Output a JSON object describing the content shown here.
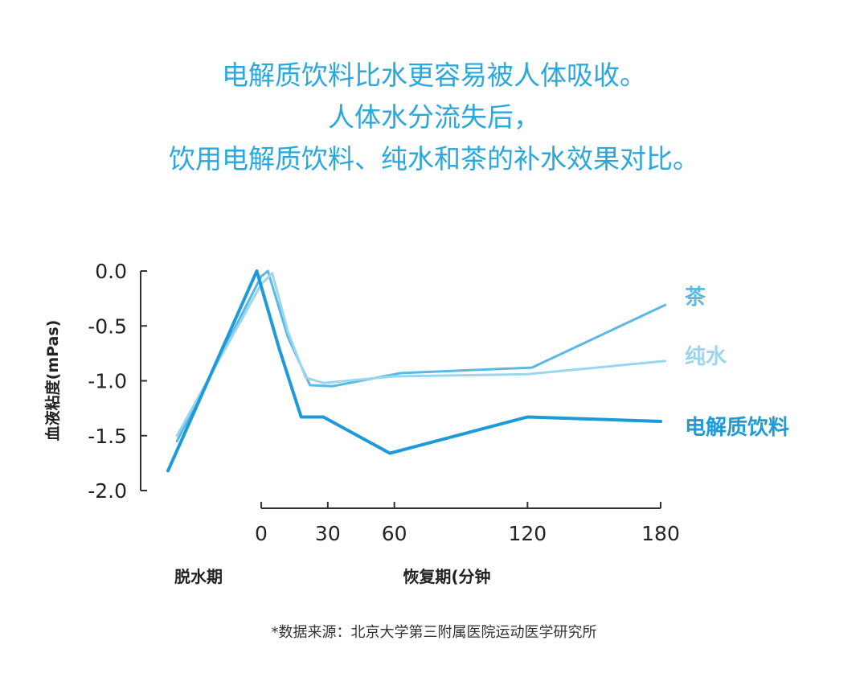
{
  "title_lines": [
    "电解质饮料比水更容易被人体吸收。",
    "人体水分流失后，",
    "饮用电解质饮料、纯水和茶的补水效果对比。"
  ],
  "footnote": "*数据来源：北京大学第三附属医院运动医学研究所",
  "colors": {
    "title": "#2aa7db",
    "tea": "#5bb8e2",
    "water": "#9ad6f0",
    "electrolyte": "#1e9ad9",
    "axis": "#333333"
  },
  "chart_data": {
    "type": "line",
    "ylabel": "血液粘度(mPas)",
    "ylim": [
      -2.0,
      0.0
    ],
    "yticks": [
      "0.0",
      "-0.5",
      "-1.0",
      "-1.5",
      "-2.0"
    ],
    "yticks_values": [
      0.0,
      -0.5,
      -1.0,
      -1.5,
      -2.0
    ],
    "xlabel": "恢复期(分钟",
    "xticks": [
      "0",
      "30",
      "60",
      "120",
      "180"
    ],
    "xticks_values": [
      0,
      30,
      60,
      120,
      180
    ],
    "dehydration_label": "脱水期",
    "series": [
      {
        "name": "茶",
        "color": "#5bb8e2",
        "points": [
          [
            -38,
            -1.55
          ],
          [
            0,
            -0.05
          ],
          [
            3,
            0.0
          ],
          [
            12,
            -0.6
          ],
          [
            22,
            -1.04
          ],
          [
            32,
            -1.05
          ],
          [
            63,
            -0.93
          ],
          [
            122,
            -0.88
          ],
          [
            182,
            -0.31
          ]
        ]
      },
      {
        "name": "纯水",
        "color": "#9ad6f0",
        "points": [
          [
            -38,
            -1.5
          ],
          [
            0,
            -0.12
          ],
          [
            5,
            -0.02
          ],
          [
            12,
            -0.55
          ],
          [
            20,
            -0.97
          ],
          [
            28,
            -1.02
          ],
          [
            60,
            -0.96
          ],
          [
            120,
            -0.94
          ],
          [
            182,
            -0.82
          ]
        ]
      },
      {
        "name": "电解质饮料",
        "color": "#1e9ad9",
        "points": [
          [
            -42,
            -1.82
          ],
          [
            -2,
            0.0
          ],
          [
            8,
            -0.7
          ],
          [
            18,
            -1.33
          ],
          [
            28,
            -1.33
          ],
          [
            58,
            -1.66
          ],
          [
            120,
            -1.33
          ],
          [
            180,
            -1.37
          ]
        ]
      }
    ]
  }
}
